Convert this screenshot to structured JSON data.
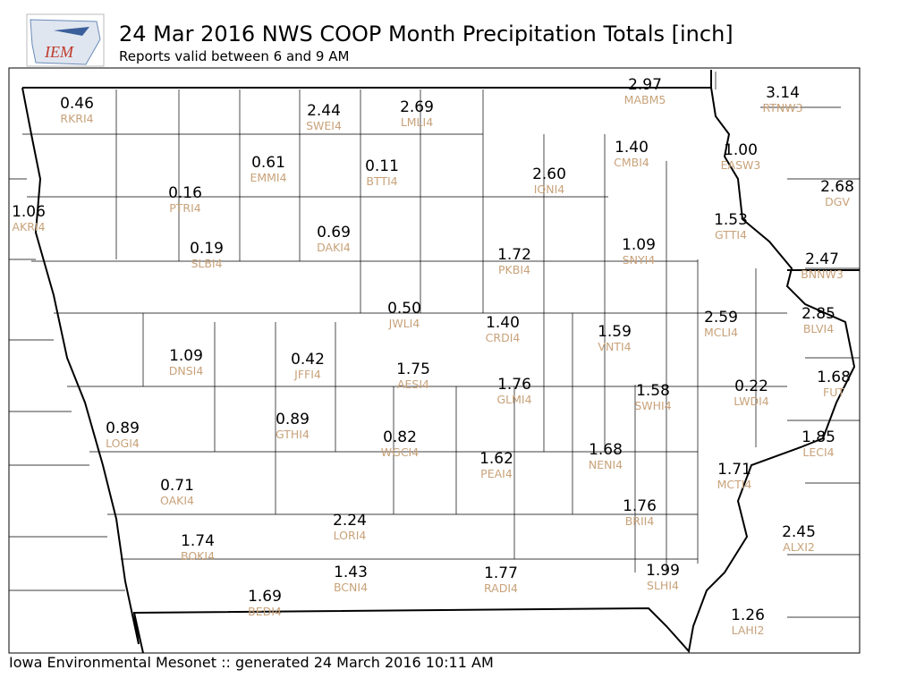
{
  "logo_text": "IEM",
  "title": "24 Mar 2016 NWS COOP Month Precipitation Totals [inch]",
  "subtitle": "Reports valid between 6 and 9 AM",
  "footer": "Iowa Environmental Mesonet :: generated 24 March 2016 10:11 AM",
  "stations": [
    {
      "value": "0.46",
      "id": "RKRI4"
    },
    {
      "value": "2.44",
      "id": "SWEI4"
    },
    {
      "value": "2.69",
      "id": "LMLI4"
    },
    {
      "value": "2.97",
      "id": "MABM5"
    },
    {
      "value": "3.14",
      "id": "RTNW3"
    },
    {
      "value": "1.40",
      "id": "CMBI4"
    },
    {
      "value": "1.00",
      "id": "EASW3"
    },
    {
      "value": "0.61",
      "id": "EMMI4"
    },
    {
      "value": "0.11",
      "id": "BTTI4"
    },
    {
      "value": "2.60",
      "id": "IONI4"
    },
    {
      "value": "2.68",
      "id": "DGV"
    },
    {
      "value": "0.16",
      "id": "PTRI4"
    },
    {
      "value": "1.06",
      "id": "AKRI4"
    },
    {
      "value": "1.53",
      "id": "GTTI4"
    },
    {
      "value": "0.69",
      "id": "DAKI4"
    },
    {
      "value": "0.19",
      "id": "SLBI4"
    },
    {
      "value": "1.72",
      "id": "PKBI4"
    },
    {
      "value": "1.09",
      "id": "SNYI4"
    },
    {
      "value": "2.47",
      "id": "BNNW3"
    },
    {
      "value": "0.50",
      "id": "JWLI4"
    },
    {
      "value": "1.40",
      "id": "CRDI4"
    },
    {
      "value": "2.59",
      "id": "MCLI4"
    },
    {
      "value": "2.85",
      "id": "BLVI4"
    },
    {
      "value": "1.59",
      "id": "VNTI4"
    },
    {
      "value": "1.09",
      "id": "DNSI4"
    },
    {
      "value": "0.42",
      "id": "JFFI4"
    },
    {
      "value": "1.75",
      "id": "AESI4"
    },
    {
      "value": "1.76",
      "id": "GLMI4"
    },
    {
      "value": "1.58",
      "id": "SWHI4"
    },
    {
      "value": "0.22",
      "id": "LWDI4"
    },
    {
      "value": "1.68",
      "id": "FUT"
    },
    {
      "value": "0.89",
      "id": "LOGI4"
    },
    {
      "value": "0.89",
      "id": "GTHI4"
    },
    {
      "value": "0.82",
      "id": "WGCI4"
    },
    {
      "value": "1.62",
      "id": "PEAI4"
    },
    {
      "value": "1.68",
      "id": "NENI4"
    },
    {
      "value": "1.85",
      "id": "LECI4"
    },
    {
      "value": "1.71",
      "id": "MCTI4"
    },
    {
      "value": "0.71",
      "id": "OAKI4"
    },
    {
      "value": "2.24",
      "id": "LORI4"
    },
    {
      "value": "1.76",
      "id": "BRII4"
    },
    {
      "value": "2.45",
      "id": "ALXI2"
    },
    {
      "value": "1.74",
      "id": "BOKI4"
    },
    {
      "value": "1.43",
      "id": "BCNI4"
    },
    {
      "value": "1.77",
      "id": "RADI4"
    },
    {
      "value": "1.99",
      "id": "SLHI4"
    },
    {
      "value": "1.69",
      "id": "BEDI4"
    },
    {
      "value": "1.26",
      "id": "LAHI2"
    }
  ]
}
